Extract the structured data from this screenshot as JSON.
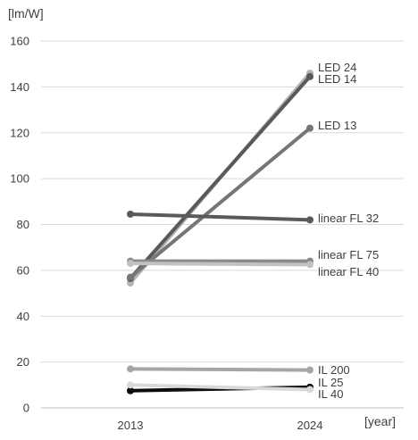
{
  "chart_data": {
    "type": "line",
    "ylabel": "[lm/W]",
    "xlabel": "[year]",
    "x": [
      "2013",
      "2024"
    ],
    "ylim": [
      0,
      160
    ],
    "yticks": [
      0,
      20,
      40,
      60,
      80,
      100,
      120,
      140,
      160
    ],
    "grid": true,
    "legend": "none",
    "series": [
      {
        "name": "LED 24",
        "values": [
          54.5,
          146
        ],
        "color": "#b3b3b3"
      },
      {
        "name": "LED 14",
        "values": [
          56.5,
          144.5
        ],
        "color": "#595959"
      },
      {
        "name": "LED 13",
        "values": [
          57,
          122
        ],
        "color": "#767676"
      },
      {
        "name": "linear FL 32",
        "values": [
          84.5,
          82
        ],
        "color": "#5a5a5a"
      },
      {
        "name": "linear FL 75",
        "values": [
          64,
          64
        ],
        "color": "#8a8a8a"
      },
      {
        "name": "linear FL 40",
        "values": [
          63,
          62.5
        ],
        "color": "#c2c2c2"
      },
      {
        "name": "IL 200",
        "values": [
          17,
          16.5
        ],
        "color": "#a6a6a6"
      },
      {
        "name": "IL 25",
        "values": [
          7.5,
          9
        ],
        "color": "#0d0d0d"
      },
      {
        "name": "IL 40",
        "values": [
          10,
          8
        ],
        "color": "#d9d9d9"
      }
    ]
  }
}
